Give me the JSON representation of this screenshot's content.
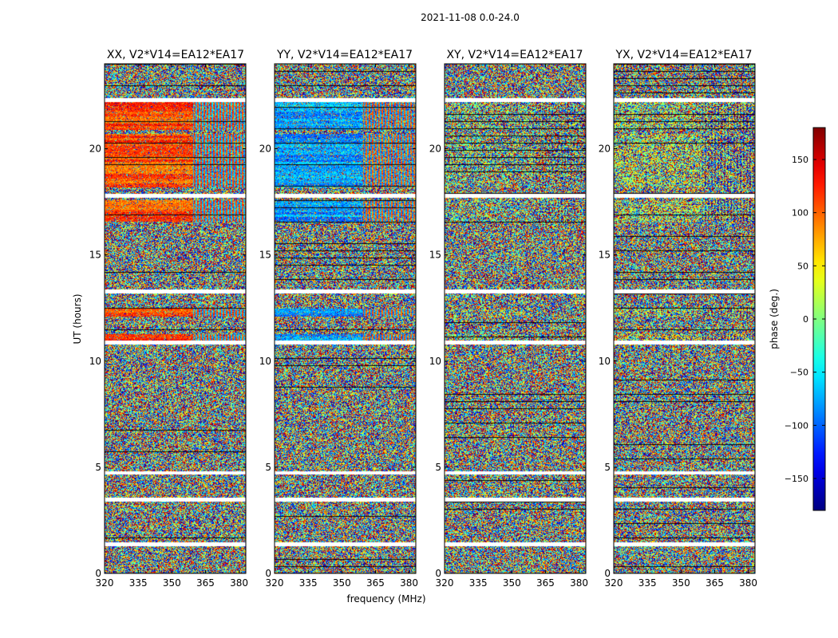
{
  "figure": {
    "suptitle": "2021-11-08 0.0-24.0"
  },
  "chart_data": {
    "type": "heatmap",
    "xlabel": "frequency (MHz)",
    "ylabel": "UT (hours)",
    "xlim": [
      320,
      383
    ],
    "ylim": [
      0,
      24
    ],
    "xticks": [
      320,
      335,
      350,
      365,
      380
    ],
    "yticks": [
      0,
      5,
      10,
      15,
      20
    ],
    "panels": [
      {
        "title": "XX, V2*V14=EA12*EA17",
        "base_phase": 110,
        "coherence": 0.85
      },
      {
        "title": "YY, V2*V14=EA12*EA17",
        "base_phase": -80,
        "coherence": 0.8
      },
      {
        "title": "XY, V2*V14=EA12*EA17",
        "base_phase": 0,
        "coherence": 0.15
      },
      {
        "title": "YX, V2*V14=EA12*EA17",
        "base_phase": 20,
        "coherence": 0.25
      }
    ],
    "colorbar": {
      "label": "phase (deg.)",
      "range": [
        -180,
        180
      ],
      "ticks": [
        150,
        100,
        50,
        0,
        -50,
        -100,
        -150
      ],
      "tick_labels": [
        "150",
        "100",
        "50",
        "0",
        "−50",
        "−100",
        "−150"
      ],
      "colormap": "jet"
    },
    "blank_rows_ut": [
      1.4,
      3.5,
      4.75,
      10.9,
      13.3,
      17.8,
      22.3
    ],
    "coherent_ut_ranges": [
      [
        18.2,
        20.7
      ],
      [
        20.9,
        22.3
      ],
      [
        16.6,
        17.6
      ],
      [
        12.1,
        12.5
      ],
      [
        11.0,
        11.3
      ]
    ]
  }
}
